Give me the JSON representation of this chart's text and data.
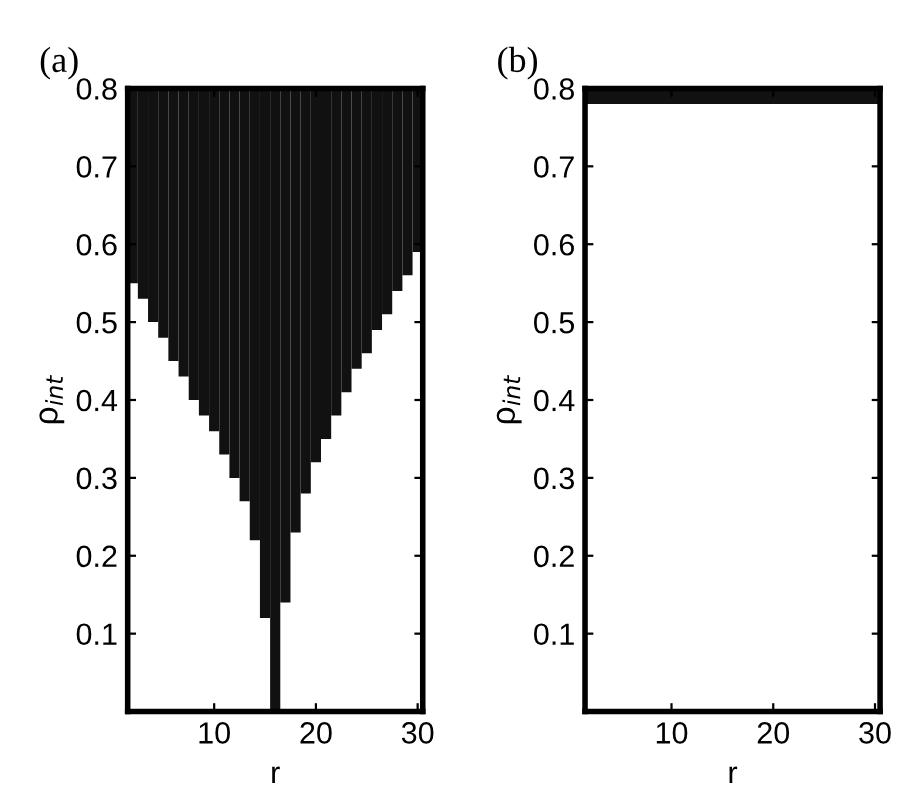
{
  "chart_data": [
    {
      "type": "bar",
      "title": "(a)",
      "xlabel": "r",
      "ylabel": "ρ$_{int}$",
      "color": "#111111",
      "x": [
        2,
        3,
        4,
        5,
        6,
        7,
        8,
        9,
        10,
        11,
        12,
        13,
        14,
        15,
        16,
        17,
        18,
        19,
        20,
        21,
        22,
        23,
        24,
        25,
        26,
        27,
        28,
        29,
        30
      ],
      "base": [
        0.55,
        0.53,
        0.5,
        0.48,
        0.45,
        0.43,
        0.4,
        0.38,
        0.36,
        0.33,
        0.3,
        0.27,
        0.22,
        0.12,
        0.0,
        0.14,
        0.23,
        0.28,
        0.32,
        0.35,
        0.38,
        0.41,
        0.44,
        0.46,
        0.49,
        0.51,
        0.54,
        0.56,
        0.59
      ],
      "values": [
        0.25,
        0.27,
        0.3,
        0.32,
        0.35,
        0.37,
        0.4,
        0.42,
        0.44,
        0.47,
        0.5,
        0.53,
        0.58,
        0.68,
        0.8,
        0.66,
        0.57,
        0.52,
        0.48,
        0.45,
        0.42,
        0.39,
        0.36,
        0.34,
        0.31,
        0.29,
        0.26,
        0.24,
        0.21
      ],
      "xlim": [
        1.5,
        30.5
      ],
      "ylim": [
        0,
        0.8
      ],
      "xticks": [
        10,
        20,
        30
      ],
      "yticks": [
        {
          "value": 0,
          "label": null
        },
        0.1,
        0.2,
        0.3,
        0.4,
        0.5,
        0.6,
        0.7,
        0.8
      ],
      "grid": false
    },
    {
      "type": "bar",
      "title": "(b)",
      "xlabel": "r",
      "ylabel": "ρ$_{int}$",
      "bands": [
        {
          "axis": "y",
          "from": 0.78,
          "to": 0.8,
          "color": "#111111"
        }
      ],
      "xlim": [
        1.5,
        30.5
      ],
      "ylim": [
        0,
        0.8
      ],
      "xticks": [
        10,
        20,
        30
      ],
      "yticks": [
        {
          "value": 0,
          "label": null
        },
        0.1,
        0.2,
        0.3,
        0.4,
        0.5,
        0.6,
        0.7,
        0.8
      ],
      "grid": false
    }
  ]
}
